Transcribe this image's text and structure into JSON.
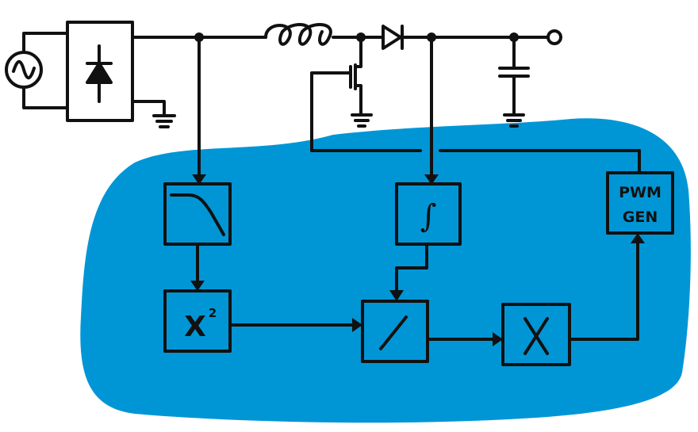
{
  "colors": {
    "ink": "#111111",
    "control_region": "#0096d6",
    "background": "#ffffff"
  },
  "blocks": {
    "low_pass_filter": {
      "icon": "low-pass-filter-icon"
    },
    "squarer": {
      "label": "X",
      "exponent": "2"
    },
    "integrator": {
      "icon": "integral-icon",
      "symbol": "∫"
    },
    "divider": {
      "icon": "divide-slash-icon"
    },
    "multiplier": {
      "icon": "multiply-x-icon"
    },
    "pwm_generator": {
      "line1": "PWM",
      "line2": "GEN"
    }
  },
  "components": [
    "ac-source-icon",
    "bridge-rectifier-icon",
    "inductor-icon",
    "mosfet-switch-icon",
    "diode-icon",
    "output-capacitor-icon",
    "ground-icon",
    "output-terminal-icon"
  ]
}
